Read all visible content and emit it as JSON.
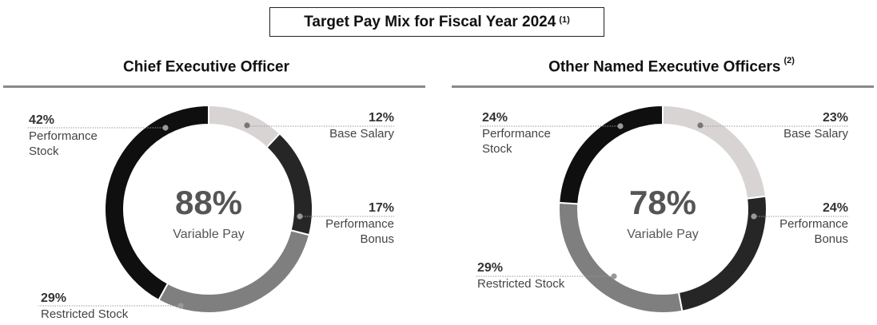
{
  "title": {
    "text": "Target Pay Mix for Fiscal Year 2024",
    "note": "(1)"
  },
  "chart_data": [
    {
      "type": "pie",
      "variant": "donut",
      "title": "Chief Executive Officer",
      "title_note": "",
      "center_value": "88%",
      "center_label": "Variable Pay",
      "slices": [
        {
          "label": "Base Salary",
          "value": 12,
          "value_label": "12%",
          "color": "#d8d4d4"
        },
        {
          "label": "Performance Bonus",
          "value": 17,
          "value_label": "17%",
          "color": "#262626"
        },
        {
          "label": "Restricted Stock",
          "value": 29,
          "value_label": "29%",
          "color": "#7f7f7f"
        },
        {
          "label": "Performance Stock",
          "value": 42,
          "value_label": "42%",
          "color": "#0f0f0f"
        }
      ]
    },
    {
      "type": "pie",
      "variant": "donut",
      "title": "Other Named Executive Officers",
      "title_note": "(2)",
      "center_value": "78%",
      "center_label": "Variable Pay",
      "slices": [
        {
          "label": "Base Salary",
          "value": 23,
          "value_label": "23%",
          "color": "#d8d4d4"
        },
        {
          "label": "Performance Bonus",
          "value": 24,
          "value_label": "24%",
          "color": "#262626"
        },
        {
          "label": "Restricted Stock",
          "value": 29,
          "value_label": "29%",
          "color": "#7f7f7f"
        },
        {
          "label": "Performance Stock",
          "value": 24,
          "value_label": "24%",
          "color": "#0f0f0f"
        }
      ]
    }
  ]
}
